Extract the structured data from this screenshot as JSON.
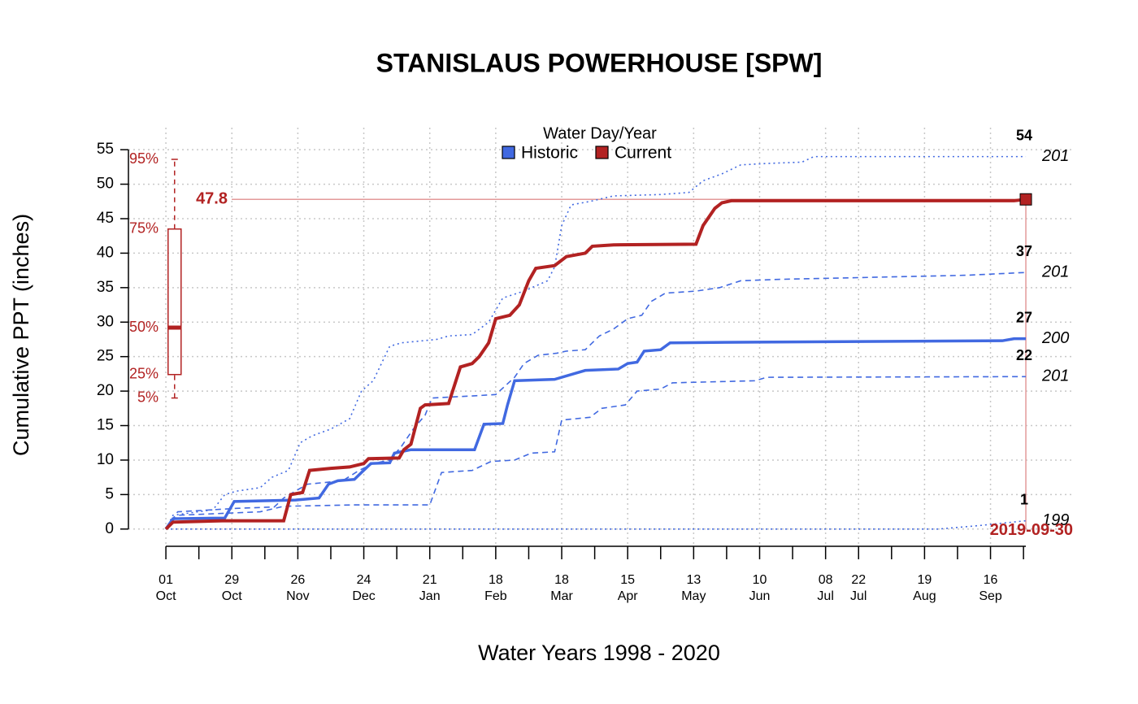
{
  "chart_data": {
    "type": "line",
    "title": "STANISLAUS POWERHOUSE [SPW]",
    "x_label": "Water Years 1998 - 2020",
    "y_label": "Cumulative PPT (inches)",
    "xlim": [
      -15.9,
      385
    ],
    "ylim": [
      -2.5,
      58.2
    ],
    "yticks": [
      0,
      5,
      10,
      15,
      20,
      25,
      30,
      35,
      40,
      45,
      50,
      55
    ],
    "xticks": [
      {
        "value": 0,
        "label": "01\nOct"
      },
      {
        "value": 28,
        "label": "29\nOct"
      },
      {
        "value": 56,
        "label": "26\nNov"
      },
      {
        "value": 84,
        "label": "24\nDec"
      },
      {
        "value": 112,
        "label": "21\nJan"
      },
      {
        "value": 140,
        "label": "18\nFeb"
      },
      {
        "value": 168,
        "label": "18\nMar"
      },
      {
        "value": 196,
        "label": "15\nApr"
      },
      {
        "value": 224,
        "label": "13\nMay"
      },
      {
        "value": 252,
        "label": "10\nJun"
      },
      {
        "value": 280,
        "label": "08\nJul"
      },
      {
        "value": 294,
        "label": "22\nJul"
      },
      {
        "value": 322,
        "label": "19\nAug"
      },
      {
        "value": 350,
        "label": "16\nSep"
      }
    ],
    "xminor_ticks": [
      0,
      14,
      28,
      42,
      56,
      70,
      84,
      98,
      112,
      126,
      140,
      154,
      168,
      182,
      196,
      210,
      224,
      238,
      252,
      266,
      280,
      294,
      308,
      322,
      336,
      350,
      364
    ],
    "grid": true,
    "legend": {
      "title": "Water Day/Year",
      "position": "top",
      "entries": [
        {
          "name": "Historic",
          "color": "#4169e1"
        },
        {
          "name": "Current",
          "color": "#b22222"
        }
      ]
    },
    "series": [
      {
        "color": "#4169e1",
        "style": "dotted",
        "end_value": 54,
        "end_year": "201",
        "x": [
          0,
          3,
          20,
          25,
          30,
          40,
          45,
          52,
          57,
          62,
          70,
          78,
          83,
          88,
          95,
          100,
          115,
          120,
          130,
          137,
          143,
          152,
          162,
          165,
          168,
          172,
          180,
          190,
          210,
          222,
          228,
          236,
          244,
          255,
          270,
          275,
          365
        ],
        "values": [
          0,
          2,
          2.8,
          5,
          5.5,
          6,
          7.5,
          8.5,
          12.5,
          13.5,
          14.5,
          16,
          20,
          21.5,
          26.5,
          27,
          27.5,
          28,
          28.2,
          30,
          33.5,
          34.5,
          36,
          38,
          44,
          47,
          47.5,
          48.3,
          48.5,
          48.8,
          50.5,
          51.5,
          52.8,
          53,
          53.2,
          54,
          54
        ]
      },
      {
        "color": "#4169e1",
        "style": "dashed",
        "end_value": 37,
        "end_year": "201",
        "x": [
          0,
          5,
          30,
          46,
          50,
          60,
          75,
          82,
          88,
          95,
          100,
          105,
          110,
          113,
          130,
          140,
          148,
          152,
          158,
          166,
          170,
          178,
          184,
          190,
          196,
          202,
          206,
          212,
          225,
          235,
          244,
          260,
          300,
          340,
          365
        ],
        "values": [
          0,
          2.5,
          3,
          3.2,
          4.5,
          6.5,
          7,
          8.5,
          9.5,
          10,
          12,
          14.5,
          16.5,
          19,
          19.3,
          19.5,
          22,
          24,
          25.2,
          25.5,
          25.8,
          26,
          28,
          29,
          30.5,
          31,
          33,
          34.2,
          34.5,
          35,
          36,
          36.2,
          36.5,
          36.8,
          37.2
        ]
      },
      {
        "color": "#4169e1",
        "style": "solid",
        "end_value": 27,
        "end_year": "200",
        "x": [
          0,
          3,
          25,
          29,
          55,
          65,
          69,
          73,
          80,
          83,
          87,
          95,
          97,
          104,
          131,
          135,
          143,
          145,
          148,
          165,
          175,
          178,
          192,
          196,
          200,
          203,
          210,
          214,
          250,
          355,
          360,
          365
        ],
        "values": [
          0,
          1.5,
          1.6,
          4,
          4.2,
          4.5,
          6.5,
          7,
          7.2,
          8.2,
          9.5,
          9.6,
          11,
          11.5,
          11.5,
          15.2,
          15.3,
          18,
          21.5,
          21.7,
          22.7,
          23,
          23.2,
          24,
          24.2,
          25.8,
          26,
          27,
          27.1,
          27.3,
          27.6,
          27.6
        ]
      },
      {
        "color": "#4169e1",
        "style": "dashed",
        "end_value": 22,
        "end_year": "201",
        "x": [
          0,
          5,
          40,
          50,
          80,
          112,
          117,
          130,
          138,
          148,
          155,
          165,
          168,
          180,
          185,
          195,
          200,
          210,
          215,
          250,
          255,
          365
        ],
        "values": [
          0,
          2,
          2.5,
          3.3,
          3.5,
          3.5,
          8.2,
          8.5,
          9.8,
          10,
          11,
          11.2,
          15.8,
          16.2,
          17.5,
          18,
          20,
          20.3,
          21.2,
          21.5,
          22,
          22.1
        ]
      },
      {
        "color": "#4169e1",
        "style": "dotted",
        "end_value": 1,
        "end_year": "199",
        "x": [
          0,
          328,
          345,
          365
        ],
        "values": [
          0,
          0,
          0.5,
          1.2
        ]
      },
      {
        "color": "#b22222",
        "style": "current",
        "x": [
          0,
          3,
          24,
          50,
          53,
          58,
          61,
          70,
          78,
          84,
          86,
          99,
          101,
          104,
          108,
          110,
          120,
          125,
          130,
          133,
          137,
          140,
          146,
          150,
          154,
          157,
          165,
          170,
          178,
          181,
          190,
          225,
          228,
          233,
          236,
          240,
          360,
          365
        ],
        "values": [
          0,
          1,
          1.2,
          1.2,
          5,
          5.3,
          8.5,
          8.8,
          9,
          9.5,
          10.2,
          10.3,
          11.5,
          12.3,
          17.5,
          18,
          18.2,
          23.5,
          24,
          25,
          27,
          30.5,
          31,
          32.5,
          36,
          37.8,
          38.2,
          39.5,
          40,
          41,
          41.2,
          41.3,
          44,
          46.5,
          47.3,
          47.6,
          47.6,
          47.8
        ]
      }
    ],
    "current": {
      "date": "2019-09-30",
      "day": 365,
      "value": 47.8
    },
    "boxplot": {
      "day": 3,
      "color": "#b22222",
      "stats": [
        19,
        22.4,
        29.2,
        43.5,
        53.6
      ],
      "labels": [
        "5%",
        "25%",
        "50%",
        "75%",
        "95%"
      ]
    }
  }
}
